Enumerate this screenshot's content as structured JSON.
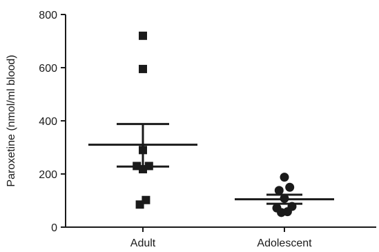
{
  "chart_data": {
    "type": "scatter",
    "ylabel": "Paroxetine (nmol/ml blood)",
    "xlabel": "",
    "ylim": [
      0,
      800
    ],
    "yticks": [
      0,
      200,
      400,
      600,
      800
    ],
    "categories": [
      "Adult",
      "Adolescent"
    ],
    "grid": false,
    "legend": "none",
    "groups": [
      {
        "category": "Adult",
        "marker": "square",
        "color": "#1a1a1a",
        "points": [
          {
            "offset": 0,
            "value": 720
          },
          {
            "offset": 0,
            "value": 595
          },
          {
            "offset": 0,
            "value": 290
          },
          {
            "offset": -0.4,
            "value": 230
          },
          {
            "offset": 0.4,
            "value": 230
          },
          {
            "offset": 0,
            "value": 218
          },
          {
            "offset": 0.2,
            "value": 102
          },
          {
            "offset": -0.2,
            "value": 85
          }
        ],
        "mean": 310,
        "sem_upper": 388,
        "sem_lower": 228
      },
      {
        "category": "Adolescent",
        "marker": "circle",
        "color": "#1a1a1a",
        "points": [
          {
            "offset": 0,
            "value": 188
          },
          {
            "offset": 0.35,
            "value": 150
          },
          {
            "offset": -0.35,
            "value": 138
          },
          {
            "offset": 0,
            "value": 108
          },
          {
            "offset": -0.5,
            "value": 72
          },
          {
            "offset": 0.5,
            "value": 78
          },
          {
            "offset": -0.2,
            "value": 55
          },
          {
            "offset": 0.2,
            "value": 58
          }
        ],
        "mean": 105,
        "sem_upper": 122,
        "sem_lower": 88
      }
    ]
  }
}
